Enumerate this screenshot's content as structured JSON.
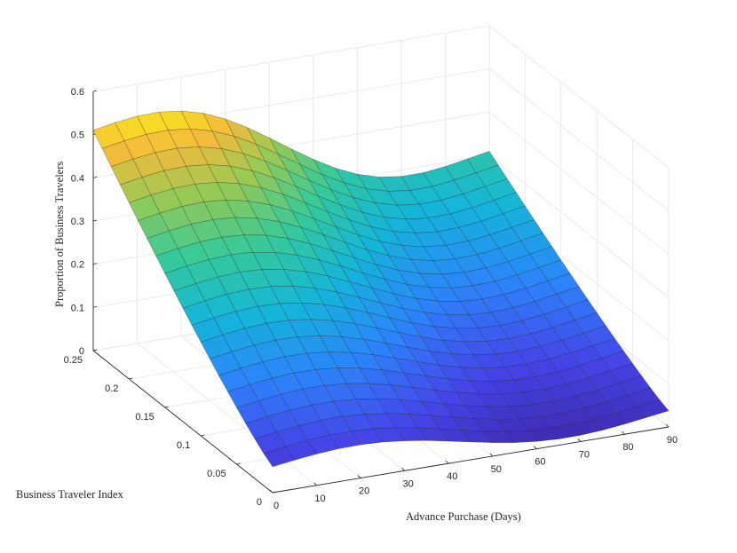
{
  "chart_data": {
    "type": "surface",
    "title": "",
    "xlabel": "Advance Purchase (Days)",
    "ylabel": "Business Traveler Index",
    "zlabel": "Proportion of Business Travelers",
    "xlim": [
      0,
      90
    ],
    "ylim": [
      0,
      0.25
    ],
    "zlim": [
      0,
      0.6
    ],
    "x_ticks": [
      0,
      10,
      20,
      30,
      40,
      50,
      60,
      70,
      80,
      90
    ],
    "y_ticks": [
      0,
      0.05,
      0.1,
      0.15,
      0.2,
      0.25
    ],
    "z_ticks": [
      0,
      0.1,
      0.2,
      0.3,
      0.4,
      0.5,
      0.6
    ],
    "x_tick_labels": [
      "0",
      "10",
      "20",
      "30",
      "40",
      "50",
      "60",
      "70",
      "80",
      "90"
    ],
    "y_tick_labels": [
      "0",
      "0.05",
      "0.1",
      "0.15",
      "0.2",
      "0.25"
    ],
    "z_tick_labels": [
      "0",
      "0.1",
      "0.2",
      "0.3",
      "0.4",
      "0.5",
      "0.6"
    ],
    "grid": true,
    "colormap": "parula",
    "surface_x": [
      0,
      5,
      10,
      15,
      20,
      25,
      30,
      35,
      40,
      45,
      50,
      55,
      60,
      65,
      70,
      75,
      80,
      85,
      90
    ],
    "surface_y": [
      0,
      0.0125,
      0.025,
      0.0375,
      0.05,
      0.0625,
      0.075,
      0.0875,
      0.1,
      0.1125,
      0.125,
      0.1375,
      0.15,
      0.1625,
      0.175,
      0.1875,
      0.2,
      0.2125,
      0.225,
      0.2375,
      0.25
    ],
    "corner_values": {
      "x0_y0.25": 0.53,
      "x90_y0.25": 0.32,
      "x0_y0": 0.08,
      "x90_y0": 0.02
    }
  }
}
